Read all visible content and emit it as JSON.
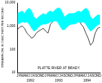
{
  "chart_data": {
    "type": "line",
    "title": "PLATTE RIVER AT BRADY",
    "y_label": "STREAMFLOW, IN CUBIC FEET PER SECOND",
    "categories": [
      "J",
      "F",
      "M",
      "A",
      "M",
      "J",
      "J",
      "A",
      "S",
      "O",
      "N",
      "D",
      "J",
      "F",
      "M",
      "A",
      "M",
      "J",
      "J",
      "A",
      "S",
      "O",
      "N",
      "D",
      "J",
      "F",
      "M",
      "A",
      "M",
      "J",
      "J",
      "A",
      "S",
      "O",
      "N",
      "D"
    ],
    "year_labels": [
      "1992",
      "1993",
      "1994"
    ],
    "log": "y",
    "grid": false,
    "ylim": [
      10,
      10000
    ],
    "yticks": [
      10,
      100,
      {
        "value": 1000,
        "label": "1,000"
      },
      {
        "value": 10000,
        "label": "10,000"
      }
    ],
    "band": {
      "color": "#00ffff",
      "upper": [
        3500,
        4000,
        4500,
        3500,
        5000,
        6000,
        4500,
        2500,
        2000,
        2500,
        3000,
        3500,
        3000,
        4000,
        4500,
        4000,
        5000,
        6000,
        6000,
        4000,
        2500,
        3000,
        3500,
        3500,
        3500,
        4000,
        4500,
        4000,
        5000,
        6000,
        5000,
        2500,
        2000,
        2500,
        3000,
        3000
      ],
      "lower": [
        1200,
        1300,
        1500,
        1400,
        1500,
        1200,
        800,
        600,
        700,
        900,
        1100,
        1200,
        1200,
        1300,
        1500,
        1500,
        1700,
        1500,
        1000,
        700,
        700,
        900,
        1100,
        1200,
        1200,
        1300,
        1500,
        1400,
        1500,
        1200,
        800,
        600,
        700,
        900,
        1100,
        1200
      ]
    },
    "series": [
      {
        "color": "#000000",
        "values": [
          700,
          900,
          1000,
          800,
          500,
          400,
          300,
          350,
          500,
          600,
          700,
          800,
          600,
          500,
          1200,
          1500,
          3000,
          4000,
          5000,
          3500,
          1500,
          1000,
          1500,
          1800,
          1500,
          1500,
          1700,
          1200,
          900,
          500,
          300,
          150,
          200,
          500,
          800,
          900
        ]
      }
    ]
  }
}
